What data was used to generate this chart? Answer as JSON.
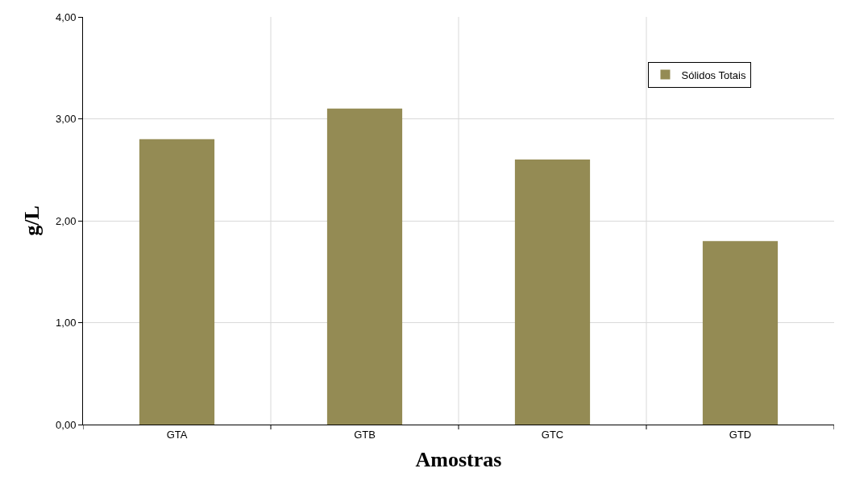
{
  "chart_data": {
    "type": "bar",
    "xlabel": "Amostras",
    "ylabel": "g/L",
    "categories": [
      "GTA",
      "GTB",
      "GTC",
      "GTD"
    ],
    "series": [
      {
        "name": "Sólidos Totais",
        "color": "#948b54",
        "values": [
          2.8,
          3.1,
          2.6,
          1.8
        ]
      }
    ],
    "ylim": [
      0,
      4
    ],
    "yticks": [
      {
        "value": 0,
        "label": "0,00"
      },
      {
        "value": 1,
        "label": "1,00"
      },
      {
        "value": 2,
        "label": "2,00"
      },
      {
        "value": 3,
        "label": "3,00"
      },
      {
        "value": 4,
        "label": "4,00"
      }
    ],
    "grid": true,
    "legend": "top right"
  }
}
